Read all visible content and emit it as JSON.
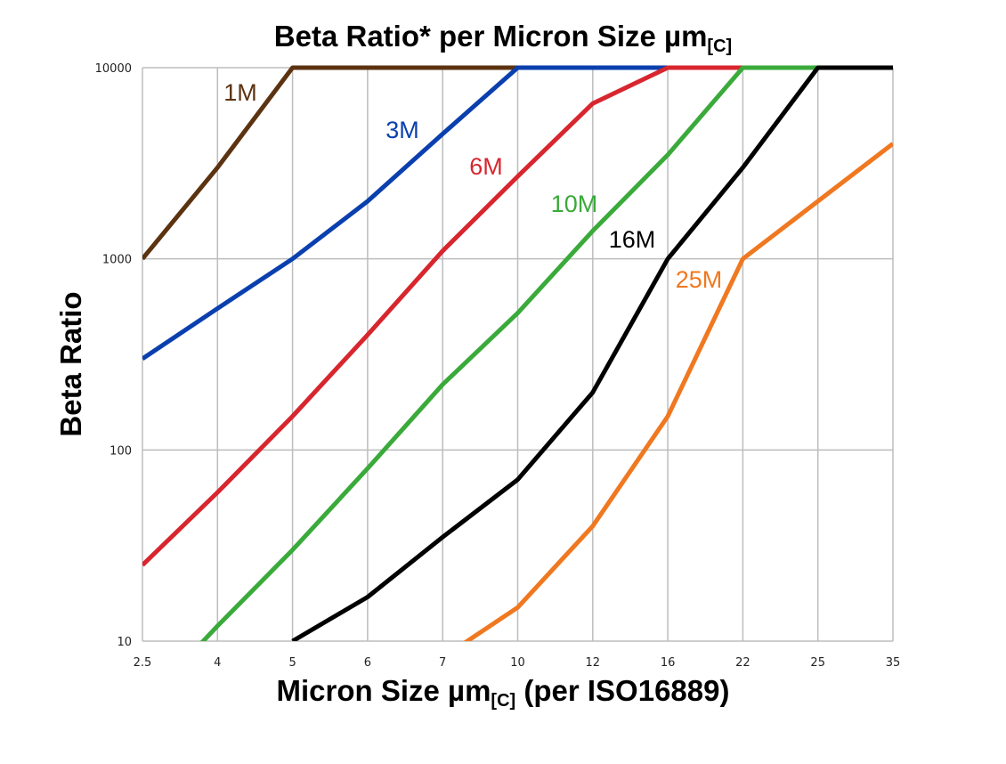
{
  "chart_data": {
    "type": "line",
    "title": {
      "main": "Beta Ratio* per Micron Size µm",
      "sub": "[C]"
    },
    "xlabel": {
      "main": "Micron Size µm",
      "sub": "[C]",
      "rest": " (per ISO16889)"
    },
    "ylabel": "Beta Ratio",
    "x_scale": "categorical",
    "y_scale": "log",
    "ylim": [
      10,
      10000
    ],
    "grid": true,
    "legend": "none (inline labels)",
    "categories": [
      "2.5",
      "4",
      "5",
      "6",
      "7",
      "10",
      "12",
      "16",
      "22",
      "25",
      "35"
    ],
    "y_ticks": [
      "10",
      "100",
      "1000",
      "10000"
    ],
    "series": [
      {
        "name": "1M",
        "color": "#5c3310",
        "values": [
          1000,
          3000,
          10000,
          10000,
          10000,
          10000,
          10000,
          10000,
          10000,
          10000,
          10000
        ]
      },
      {
        "name": "3M",
        "color": "#0a3fae",
        "values": [
          300,
          550,
          1000,
          2000,
          4500,
          10000,
          10000,
          10000,
          10000,
          10000,
          10000
        ]
      },
      {
        "name": "6M",
        "color": "#d8262e",
        "values": [
          25,
          60,
          150,
          400,
          1100,
          2700,
          6500,
          10000,
          10000,
          10000,
          10000
        ]
      },
      {
        "name": "10M",
        "color": "#3aaa3a",
        "values": [
          4.6,
          12,
          30,
          80,
          220,
          520,
          1400,
          3500,
          10000,
          10000,
          10000
        ]
      },
      {
        "name": "16M",
        "color": "#000000",
        "values": [
          null,
          null,
          10,
          17,
          35,
          70,
          200,
          1000,
          3000,
          10000,
          10000
        ]
      },
      {
        "name": "25M",
        "color": "#f07820",
        "values": [
          null,
          null,
          null,
          null,
          8.2,
          15,
          40,
          150,
          1000,
          2000,
          4000
        ]
      }
    ]
  }
}
